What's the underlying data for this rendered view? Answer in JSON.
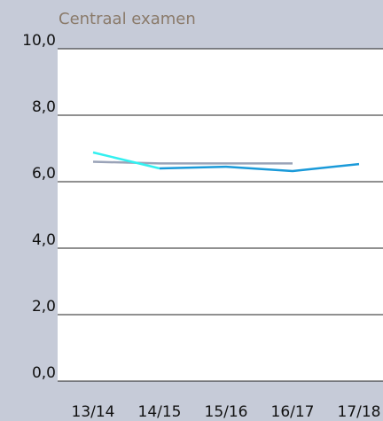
{
  "chart_data": {
    "type": "line",
    "title": "Centraal examen",
    "categories": [
      "13/14",
      "14/15",
      "15/16",
      "16/17",
      "17/18"
    ],
    "series": [
      {
        "color": "#1a9ad9",
        "values": [
          null,
          6.4,
          6.45,
          6.32,
          6.53
        ]
      },
      {
        "color": "#9aa3b8",
        "values": [
          6.6,
          6.55,
          6.55,
          6.55,
          null
        ]
      },
      {
        "color": "#33f0f0",
        "values": [
          6.88,
          6.4,
          null,
          null,
          null
        ]
      }
    ],
    "ylim": [
      0,
      10
    ],
    "yticks": [
      {
        "value": 0,
        "label": "0,0"
      },
      {
        "value": 2,
        "label": "2,0"
      },
      {
        "value": 4,
        "label": "4,0"
      },
      {
        "value": 6,
        "label": "6,0"
      },
      {
        "value": 8,
        "label": "8,0"
      },
      {
        "value": 10,
        "label": "10,0"
      }
    ],
    "grid": true
  }
}
